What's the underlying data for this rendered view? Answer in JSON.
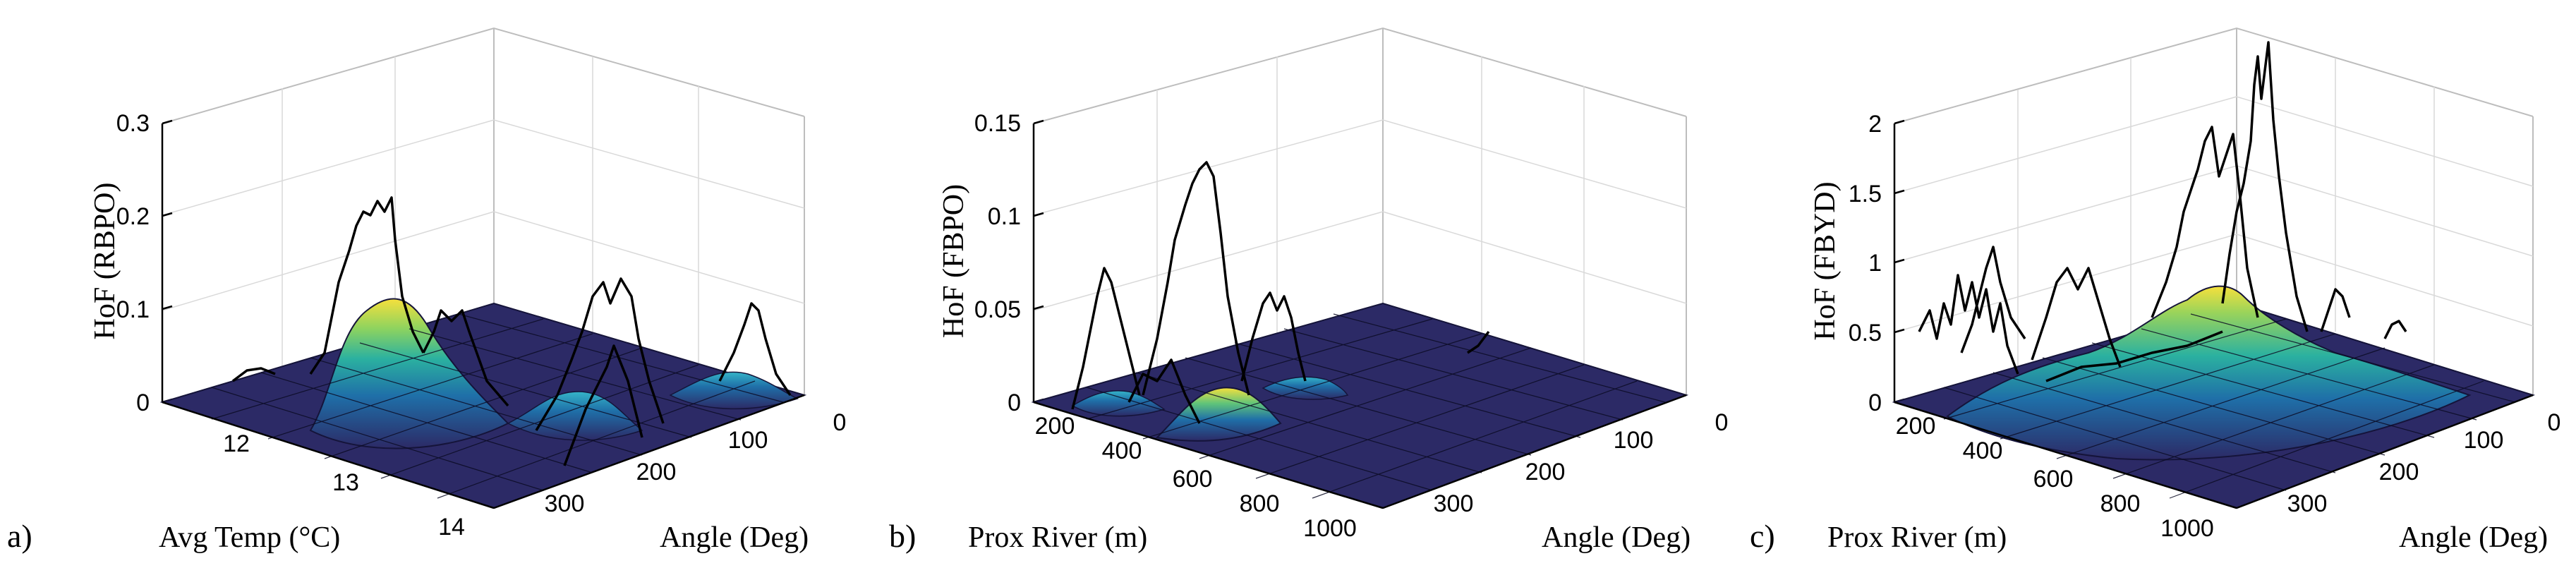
{
  "chart_data": [
    {
      "type": "surface",
      "panel_label": "a)",
      "z_label": "HoF (RBPO)",
      "x_label": "Avg Temp (°C)",
      "y_label": "Angle (Deg)",
      "z_ticks": [
        "0",
        "0.1",
        "0.2",
        "0.3"
      ],
      "z_range": [
        0,
        0.3
      ],
      "x_ticks": [
        "12",
        "13",
        "14"
      ],
      "y_ticks": [
        "300",
        "200",
        "100",
        "0"
      ],
      "peaks": [
        {
          "x": 12.5,
          "y": 330,
          "z": 0.1
        },
        {
          "x": 13.4,
          "y": 190,
          "z": 0.035
        },
        {
          "x": 13.9,
          "y": 70,
          "z": 0.04
        }
      ],
      "trace_max": 0.21,
      "colormap": [
        "#2c2a66",
        "#1f6fa8",
        "#2bb1a0",
        "#8dd35f",
        "#f6e03c"
      ]
    },
    {
      "type": "surface",
      "panel_label": "b)",
      "z_label": "HoF (FBPO)",
      "x_label": "Prox River (m)",
      "y_label": "Angle (Deg)",
      "z_ticks": [
        "0",
        "0.05",
        "0.1",
        "0.15"
      ],
      "z_range": [
        0,
        0.15
      ],
      "x_ticks": [
        "200",
        "400",
        "600",
        "800",
        "1000"
      ],
      "y_ticks": [
        "300",
        "200",
        "100",
        "0"
      ],
      "peaks": [
        {
          "x": 550,
          "y": 240,
          "z": 0.028
        },
        {
          "x": 350,
          "y": 300,
          "z": 0.015
        }
      ],
      "trace_max": 0.125,
      "colormap": [
        "#2c2a66",
        "#1f6fa8",
        "#2bb1a0",
        "#8dd35f",
        "#f6e03c"
      ]
    },
    {
      "type": "surface",
      "panel_label": "c)",
      "z_label": "HoF (FBYD)",
      "x_label": "Prox River (m)",
      "y_label": "Angle (Deg)",
      "z_ticks": [
        "0",
        "0.5",
        "1",
        "1.5",
        "2"
      ],
      "z_range": [
        0,
        2
      ],
      "x_ticks": [
        "200",
        "400",
        "600",
        "800",
        "1000"
      ],
      "y_ticks": [
        "300",
        "200",
        "100",
        "0"
      ],
      "peaks": [
        {
          "x": 600,
          "y": 130,
          "z": 0.8
        },
        {
          "x": 350,
          "y": 250,
          "z": 0.3
        }
      ],
      "trace_max": 2.3,
      "colormap": [
        "#2c2a66",
        "#1f6fa8",
        "#2bb1a0",
        "#8dd35f",
        "#f6e03c"
      ]
    }
  ]
}
